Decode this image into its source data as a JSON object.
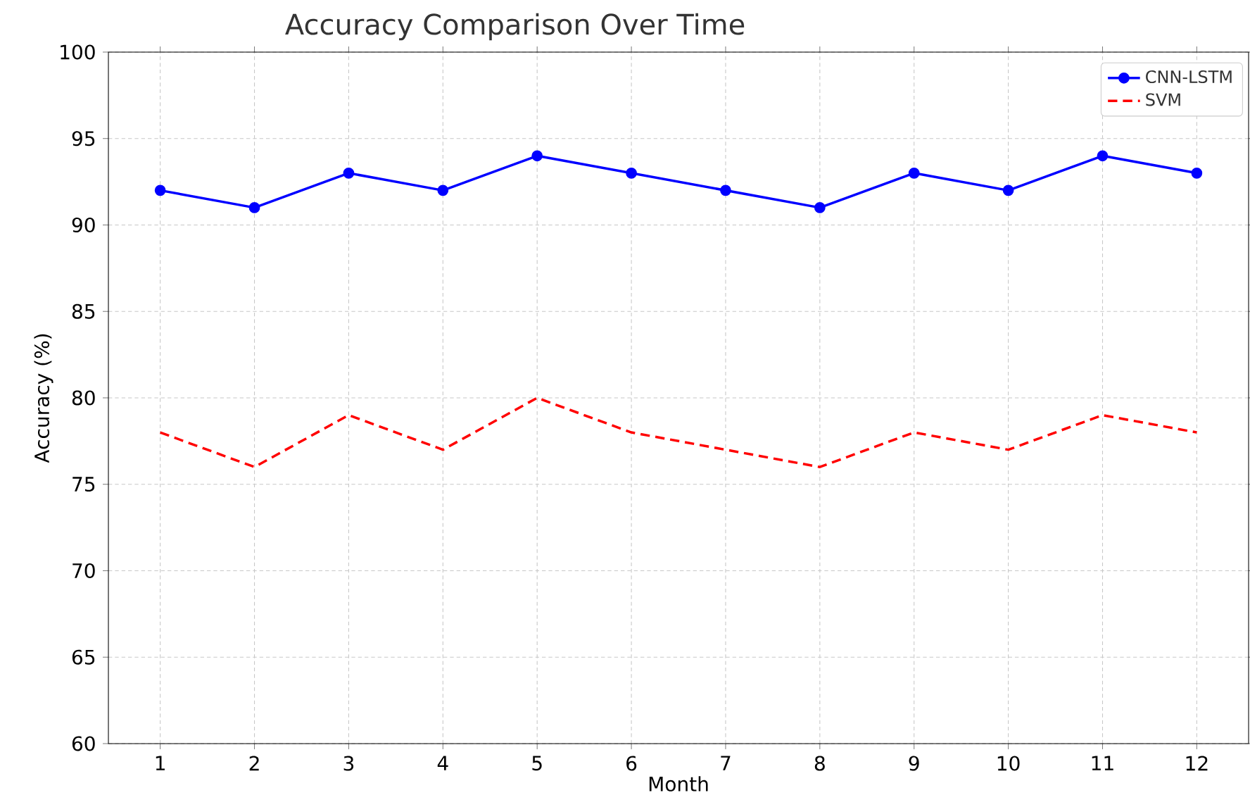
{
  "chart_data": {
    "type": "line",
    "title": "Accuracy Comparison Over Time",
    "xlabel": "Month",
    "ylabel": "Accuracy (%)",
    "x": [
      1,
      2,
      3,
      4,
      5,
      6,
      7,
      8,
      9,
      10,
      11,
      12
    ],
    "series": [
      {
        "name": "CNN-LSTM",
        "color": "#0000ff",
        "marker": "circle",
        "line_style": "solid",
        "values": [
          92,
          91,
          93,
          92,
          94,
          93,
          92,
          91,
          93,
          92,
          94,
          93
        ]
      },
      {
        "name": "SVM",
        "color": "#ff0000",
        "marker": "none",
        "line_style": "dashed",
        "values": [
          78,
          76,
          79,
          77,
          80,
          78,
          77,
          76,
          78,
          77,
          79,
          78
        ]
      }
    ],
    "xlim": [
      0.45,
      12.55
    ],
    "ylim": [
      60,
      100
    ],
    "xticks": [
      1,
      2,
      3,
      4,
      5,
      6,
      7,
      8,
      9,
      10,
      11,
      12
    ],
    "yticks": [
      60,
      65,
      70,
      75,
      80,
      85,
      90,
      95,
      100
    ],
    "grid": true,
    "legend": "top right"
  }
}
